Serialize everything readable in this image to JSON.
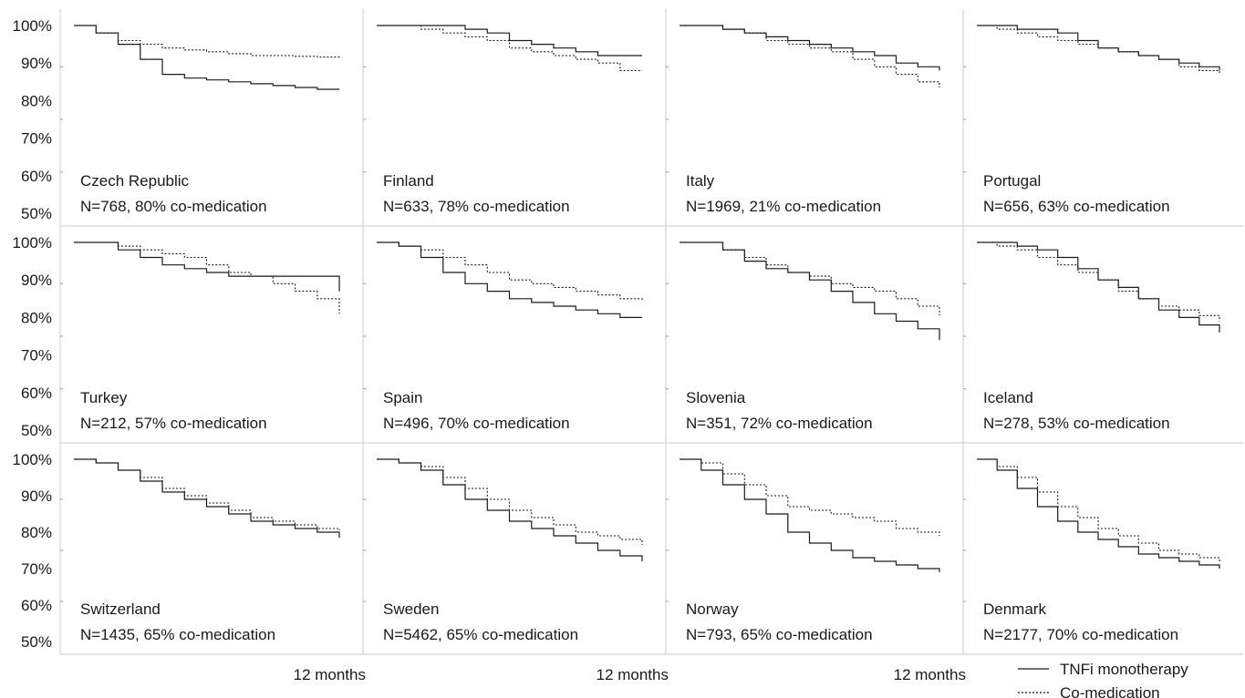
{
  "chart_data": [
    {
      "type": "line",
      "title": "Czech Republic",
      "subtitle": "N=768, 80% co-medication",
      "ylim": [
        50,
        100
      ],
      "y_ticks": [
        "100%",
        "90%",
        "80%",
        "70%",
        "60%",
        "50%"
      ],
      "xlabel": "",
      "series": [
        {
          "name": "TNFi monotherapy",
          "x": [
            0,
            1,
            2,
            3,
            4,
            5,
            6,
            7,
            8,
            9,
            10,
            11,
            12
          ],
          "y": [
            100,
            98,
            95,
            91,
            87,
            86,
            85.5,
            85,
            84.5,
            84,
            83.5,
            83,
            83
          ]
        },
        {
          "name": "Co-medication",
          "x": [
            0,
            1,
            2,
            3,
            4,
            5,
            6,
            7,
            8,
            9,
            10,
            11,
            12
          ],
          "y": [
            100,
            98,
            96,
            95,
            94,
            93.5,
            93,
            92.5,
            92,
            92,
            91.8,
            91.6,
            91.5
          ]
        }
      ]
    },
    {
      "type": "line",
      "title": "Finland",
      "subtitle": "N=633, 78% co-medication",
      "ylim": [
        50,
        100
      ],
      "y_ticks": [],
      "xlabel": "",
      "series": [
        {
          "name": "TNFi monotherapy",
          "x": [
            0,
            1,
            2,
            3,
            4,
            5,
            6,
            7,
            8,
            9,
            10,
            11,
            12
          ],
          "y": [
            100,
            100,
            100,
            100,
            99,
            98,
            96,
            95,
            94,
            93,
            92,
            92,
            92
          ]
        },
        {
          "name": "Co-medication",
          "x": [
            0,
            1,
            2,
            3,
            4,
            5,
            6,
            7,
            8,
            9,
            10,
            11,
            12
          ],
          "y": [
            100,
            100,
            99,
            98,
            97,
            96,
            94,
            93,
            92,
            91,
            90,
            88,
            88
          ]
        }
      ]
    },
    {
      "type": "line",
      "title": "Italy",
      "subtitle": "N=1969, 21% co-medication",
      "ylim": [
        50,
        100
      ],
      "y_ticks": [],
      "xlabel": "",
      "series": [
        {
          "name": "TNFi monotherapy",
          "x": [
            0,
            1,
            2,
            3,
            4,
            5,
            6,
            7,
            8,
            9,
            10,
            11,
            12
          ],
          "y": [
            100,
            100,
            99,
            98,
            97,
            96,
            95,
            94,
            93,
            92,
            90,
            89,
            88
          ]
        },
        {
          "name": "Co-medication",
          "x": [
            0,
            1,
            2,
            3,
            4,
            5,
            6,
            7,
            8,
            9,
            10,
            11,
            12
          ],
          "y": [
            100,
            100,
            99,
            98,
            96,
            95,
            94,
            93,
            91,
            89,
            87,
            85,
            83.5
          ]
        }
      ]
    },
    {
      "type": "line",
      "title": "Portugal",
      "subtitle": "N=656, 63% co-medication",
      "ylim": [
        50,
        100
      ],
      "y_ticks": [],
      "xlabel": "",
      "series": [
        {
          "name": "TNFi monotherapy",
          "x": [
            0,
            1,
            2,
            3,
            4,
            5,
            6,
            7,
            8,
            9,
            10,
            11,
            12
          ],
          "y": [
            100,
            100,
            99,
            99,
            98,
            96,
            94,
            93,
            92,
            91,
            90,
            89,
            88
          ]
        },
        {
          "name": "Co-medication",
          "x": [
            0,
            1,
            2,
            3,
            4,
            5,
            6,
            7,
            8,
            9,
            10,
            11,
            12
          ],
          "y": [
            100,
            99,
            98,
            97,
            96,
            95,
            94,
            93,
            92,
            91,
            89,
            88,
            87
          ]
        }
      ]
    },
    {
      "type": "line",
      "title": "Turkey",
      "subtitle": "N=212, 57% co-medication",
      "ylim": [
        50,
        100
      ],
      "y_ticks": [
        "100%",
        "90%",
        "80%",
        "70%",
        "60%",
        "50%"
      ],
      "xlabel": "",
      "series": [
        {
          "name": "TNFi monotherapy",
          "x": [
            0,
            1,
            2,
            3,
            4,
            5,
            6,
            7,
            8,
            9,
            10,
            11,
            12
          ],
          "y": [
            100,
            100,
            98,
            96,
            94,
            93,
            92,
            91,
            91,
            91,
            91,
            91,
            87
          ]
        },
        {
          "name": "Co-medication",
          "x": [
            0,
            1,
            2,
            3,
            4,
            5,
            6,
            7,
            8,
            9,
            10,
            11,
            12
          ],
          "y": [
            100,
            100,
            99,
            98,
            97,
            96,
            94,
            92,
            91,
            89,
            87,
            85,
            81
          ]
        }
      ]
    },
    {
      "type": "line",
      "title": "Spain",
      "subtitle": "N=496, 70% co-medication",
      "ylim": [
        50,
        100
      ],
      "y_ticks": [],
      "xlabel": "",
      "series": [
        {
          "name": "TNFi monotherapy",
          "x": [
            0,
            1,
            2,
            3,
            4,
            5,
            6,
            7,
            8,
            9,
            10,
            11,
            12
          ],
          "y": [
            100,
            99,
            96,
            92,
            89,
            87,
            85,
            84,
            83,
            82,
            81,
            80,
            80
          ]
        },
        {
          "name": "Co-medication",
          "x": [
            0,
            1,
            2,
            3,
            4,
            5,
            6,
            7,
            8,
            9,
            10,
            11,
            12
          ],
          "y": [
            100,
            99,
            98,
            96,
            94,
            92,
            90,
            89,
            88,
            87,
            86,
            85,
            84.5
          ]
        }
      ]
    },
    {
      "type": "line",
      "title": "Slovenia",
      "subtitle": "N=351, 72% co-medication",
      "ylim": [
        50,
        100
      ],
      "y_ticks": [],
      "xlabel": "",
      "series": [
        {
          "name": "TNFi monotherapy",
          "x": [
            0,
            1,
            2,
            3,
            4,
            5,
            6,
            7,
            8,
            9,
            10,
            11,
            12
          ],
          "y": [
            100,
            100,
            98,
            95,
            93,
            92,
            90,
            87,
            84,
            81,
            79,
            77,
            74
          ]
        },
        {
          "name": "Co-medication",
          "x": [
            0,
            1,
            2,
            3,
            4,
            5,
            6,
            7,
            8,
            9,
            10,
            11,
            12
          ],
          "y": [
            100,
            100,
            98,
            96,
            94,
            92,
            91,
            89,
            88,
            87,
            85,
            83,
            80.5
          ]
        }
      ]
    },
    {
      "type": "line",
      "title": "Iceland",
      "subtitle": "N=278, 53% co-medication",
      "ylim": [
        50,
        100
      ],
      "y_ticks": [],
      "xlabel": "",
      "series": [
        {
          "name": "TNFi monotherapy",
          "x": [
            0,
            1,
            2,
            3,
            4,
            5,
            6,
            7,
            8,
            9,
            10,
            11,
            12
          ],
          "y": [
            100,
            100,
            99,
            98,
            96,
            93,
            90,
            88,
            85,
            82,
            80,
            78,
            76
          ]
        },
        {
          "name": "Co-medication",
          "x": [
            0,
            1,
            2,
            3,
            4,
            5,
            6,
            7,
            8,
            9,
            10,
            11,
            12
          ],
          "y": [
            100,
            99,
            98,
            96,
            94,
            92,
            90,
            87,
            85,
            83,
            82,
            80.5,
            79
          ]
        }
      ]
    },
    {
      "type": "line",
      "title": "Switzerland",
      "subtitle": "N=1435, 65% co-medication",
      "ylim": [
        50,
        100
      ],
      "y_ticks": [
        "100%",
        "90%",
        "80%",
        "70%",
        "60%",
        "50%"
      ],
      "xlabel": "12 months",
      "series": [
        {
          "name": "TNFi monotherapy",
          "x": [
            0,
            1,
            2,
            3,
            4,
            5,
            6,
            7,
            8,
            9,
            10,
            11,
            12
          ],
          "y": [
            100,
            99,
            97,
            94,
            91,
            89,
            87,
            85,
            83,
            82,
            81,
            80,
            78.5
          ]
        },
        {
          "name": "Co-medication",
          "x": [
            0,
            1,
            2,
            3,
            4,
            5,
            6,
            7,
            8,
            9,
            10,
            11,
            12
          ],
          "y": [
            100,
            99,
            97,
            95,
            92,
            90,
            88,
            86,
            84,
            83,
            82,
            81,
            80.5
          ]
        }
      ]
    },
    {
      "type": "line",
      "title": "Sweden",
      "subtitle": "N=5462, 65% co-medication",
      "ylim": [
        50,
        100
      ],
      "y_ticks": [],
      "xlabel": "12 months",
      "series": [
        {
          "name": "TNFi monotherapy",
          "x": [
            0,
            1,
            2,
            3,
            4,
            5,
            6,
            7,
            8,
            9,
            10,
            11,
            12
          ],
          "y": [
            100,
            99,
            97,
            93,
            89,
            86,
            83,
            81,
            79,
            77,
            75,
            73.5,
            72
          ]
        },
        {
          "name": "Co-medication",
          "x": [
            0,
            1,
            2,
            3,
            4,
            5,
            6,
            7,
            8,
            9,
            10,
            11,
            12
          ],
          "y": [
            100,
            99,
            98,
            95,
            92,
            89,
            86,
            84,
            82,
            80,
            79,
            78,
            76.5
          ]
        }
      ]
    },
    {
      "type": "line",
      "title": "Norway",
      "subtitle": "N=793, 65% co-medication",
      "ylim": [
        50,
        100
      ],
      "y_ticks": [],
      "xlabel": "12 months",
      "series": [
        {
          "name": "TNFi monotherapy",
          "x": [
            0,
            1,
            2,
            3,
            4,
            5,
            6,
            7,
            8,
            9,
            10,
            11,
            12
          ],
          "y": [
            100,
            97,
            93,
            89,
            85,
            80,
            77,
            75,
            73,
            72,
            71,
            70,
            69
          ]
        },
        {
          "name": "Co-medication",
          "x": [
            0,
            1,
            2,
            3,
            4,
            5,
            6,
            7,
            8,
            9,
            10,
            11,
            12
          ],
          "y": [
            100,
            99,
            96,
            93,
            90,
            87,
            86,
            85,
            84,
            83,
            81,
            80,
            79
          ]
        }
      ]
    },
    {
      "type": "line",
      "title": "Denmark",
      "subtitle": "N=2177, 70% co-medication",
      "ylim": [
        50,
        100
      ],
      "y_ticks": [],
      "xlabel": "",
      "series": [
        {
          "name": "TNFi monotherapy",
          "x": [
            0,
            1,
            2,
            3,
            4,
            5,
            6,
            7,
            8,
            9,
            10,
            11,
            12
          ],
          "y": [
            100,
            97,
            92,
            87,
            83,
            80,
            78,
            76,
            74,
            73,
            72,
            71,
            70
          ]
        },
        {
          "name": "Co-medication",
          "x": [
            0,
            1,
            2,
            3,
            4,
            5,
            6,
            7,
            8,
            9,
            10,
            11,
            12
          ],
          "y": [
            100,
            98,
            95,
            91,
            87,
            84,
            81,
            79,
            77,
            75,
            74,
            73,
            71.5
          ]
        }
      ]
    }
  ],
  "legend": {
    "items": [
      {
        "label": "TNFi monotherapy",
        "style": "solid",
        "color": "#1a1a1a"
      },
      {
        "label": "Co-medication",
        "style": "dotted",
        "color": "#1a1a1a"
      }
    ],
    "position": "bottom-right"
  },
  "x_axis_label": "12 months",
  "colors": {
    "line": "#1a1a1a",
    "frame": "#d4d4d4",
    "tick": "#9a9a9a"
  }
}
